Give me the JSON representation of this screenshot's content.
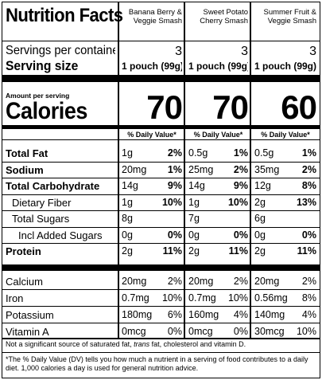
{
  "title": "Nutrition Facts",
  "products": [
    {
      "name": "Banana Berry & Veggie Smash",
      "servings": "3",
      "serving_size": "1 pouch (99g)",
      "calories": "70",
      "dv_label": "% Daily Value*",
      "nutrients": [
        {
          "amount": "1g",
          "dv": "2%"
        },
        {
          "amount": "20mg",
          "dv": "1%"
        },
        {
          "amount": "14g",
          "dv": "9%"
        },
        {
          "amount": "1g",
          "dv": "10%"
        },
        {
          "amount": "8g",
          "dv": ""
        },
        {
          "amount": "0g",
          "dv": "0%"
        },
        {
          "amount": "2g",
          "dv": "11%"
        }
      ],
      "vitamins": [
        {
          "amount": "20mg",
          "dv": "2%"
        },
        {
          "amount": "0.7mg",
          "dv": "10%"
        },
        {
          "amount": "180mg",
          "dv": "6%"
        },
        {
          "amount": "0mcg",
          "dv": "0%"
        }
      ]
    },
    {
      "name": "Sweet Potato Cherry Smash",
      "servings": "3",
      "serving_size": "1 pouch (99g)",
      "calories": "70",
      "dv_label": "% Daily Value*",
      "nutrients": [
        {
          "amount": "0.5g",
          "dv": "1%"
        },
        {
          "amount": "25mg",
          "dv": "2%"
        },
        {
          "amount": "14g",
          "dv": "9%"
        },
        {
          "amount": "1g",
          "dv": "10%"
        },
        {
          "amount": "7g",
          "dv": ""
        },
        {
          "amount": "0g",
          "dv": "0%"
        },
        {
          "amount": "2g",
          "dv": "11%"
        }
      ],
      "vitamins": [
        {
          "amount": "20mg",
          "dv": "2%"
        },
        {
          "amount": "0.7mg",
          "dv": "10%"
        },
        {
          "amount": "160mg",
          "dv": "4%"
        },
        {
          "amount": "0mcg",
          "dv": "0%"
        }
      ]
    },
    {
      "name": "Summer Fruit & Veggie Smash",
      "servings": "3",
      "serving_size": "1 pouch (99g)",
      "calories": "60",
      "dv_label": "% Daily Value*",
      "nutrients": [
        {
          "amount": "0.5g",
          "dv": "1%"
        },
        {
          "amount": "35mg",
          "dv": "2%"
        },
        {
          "amount": "12g",
          "dv": "8%"
        },
        {
          "amount": "2g",
          "dv": "13%"
        },
        {
          "amount": "6g",
          "dv": ""
        },
        {
          "amount": "0g",
          "dv": "0%"
        },
        {
          "amount": "2g",
          "dv": "11%"
        }
      ],
      "vitamins": [
        {
          "amount": "20mg",
          "dv": "2%"
        },
        {
          "amount": "0.56mg",
          "dv": "8%"
        },
        {
          "amount": "140mg",
          "dv": "4%"
        },
        {
          "amount": "30mcg",
          "dv": "10%"
        }
      ]
    }
  ],
  "servings_label": "Servings per container",
  "serving_size_label": "Serving size",
  "amount_per_serving": "Amount per serving",
  "calories_label": "Calories",
  "nutrient_rows": [
    {
      "label": "Total Fat",
      "bold": true,
      "indent": 0
    },
    {
      "label": "Sodium",
      "bold": true,
      "indent": 0
    },
    {
      "label": "Total Carbohydrate",
      "bold": true,
      "indent": 0
    },
    {
      "label": "Dietary Fiber",
      "bold": false,
      "indent": 1
    },
    {
      "label": "Total Sugars",
      "bold": false,
      "indent": 1
    },
    {
      "label": "Incl Added Sugars",
      "bold": false,
      "indent": 2
    },
    {
      "label": "Protein",
      "bold": true,
      "indent": 0
    }
  ],
  "vitamin_rows": [
    {
      "label": "Calcium"
    },
    {
      "label": "Iron"
    },
    {
      "label": "Potassium"
    },
    {
      "label": "Vitamin A"
    }
  ],
  "footnote_1_before": "Not a significant source of saturated fat, ",
  "footnote_1_trans": "trans",
  "footnote_1_after": " fat, cholesterol and vitamin D.",
  "footnote_2": "*The % Daily Value (DV) tells you how much a nutrient in a serving of food contributes to a daily diet. 1,000 calories a day is used for general nutrition advice."
}
